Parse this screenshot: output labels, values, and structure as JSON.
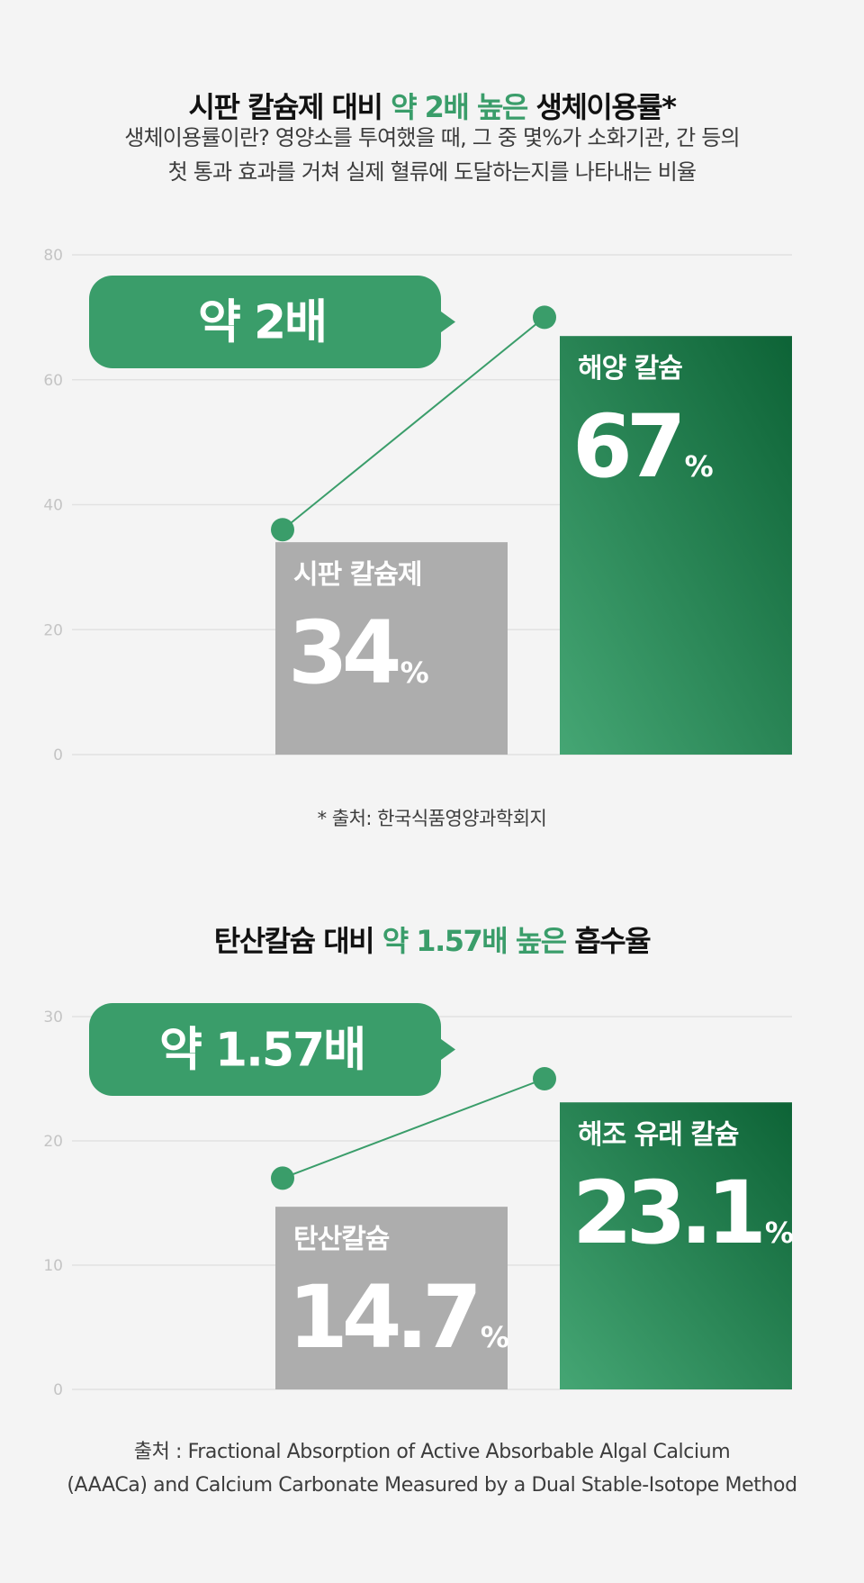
{
  "section1": {
    "title_pre": "시판 칼슘제 대비 ",
    "title_hl": "약 2배 높은",
    "title_post": " 생체이용률*",
    "desc_line1": "생체이용률이란? 영양소를 투여했을 때, 그 중 몇%가 소화기관, 간 등의",
    "desc_line2": "첫 통과 효과를 거쳐 실제 혈류에 도달하는지를 나타내는 비율",
    "note": "* 출처: 한국식품영양과학회지"
  },
  "section2": {
    "title_pre": "탄산칼슘 대비 ",
    "title_hl": "약 1.57배 높은",
    "title_post": " 흡수율",
    "source_line1": "출처 : Fractional Absorption of Active Absorbable Algal Calcium",
    "source_line2": "(AAACa) and Calcium Carbonate Measured by a Dual Stable-Isotope Method"
  },
  "colors": {
    "accent": "#3a9d6a",
    "gray_bar": "#adadad",
    "green_dark": "#0d6336",
    "green_light": "#45a674",
    "grid": "#e2e2e2"
  },
  "chart_data": [
    {
      "type": "bar",
      "categories": [
        "시판 칼슘제",
        "해양 칼슘"
      ],
      "values": [
        34,
        67
      ],
      "value_labels": [
        "34",
        "67"
      ],
      "unit": "%",
      "ylim": [
        0,
        80
      ],
      "yticks": [
        0,
        20,
        40,
        60,
        80
      ],
      "grid": true,
      "line_points": [
        36,
        70
      ],
      "callout": "약 2배",
      "bar_colors": [
        "gray",
        "green"
      ]
    },
    {
      "type": "bar",
      "categories": [
        "탄산칼슘",
        "해조 유래 칼슘"
      ],
      "values": [
        14.7,
        23.1
      ],
      "value_labels": [
        "14.7",
        "23.1"
      ],
      "unit": "%",
      "ylim": [
        0,
        30
      ],
      "yticks": [
        0,
        10,
        20,
        30
      ],
      "grid": true,
      "line_points": [
        17,
        25
      ],
      "callout": "약 1.57배",
      "bar_colors": [
        "gray",
        "green"
      ]
    }
  ]
}
